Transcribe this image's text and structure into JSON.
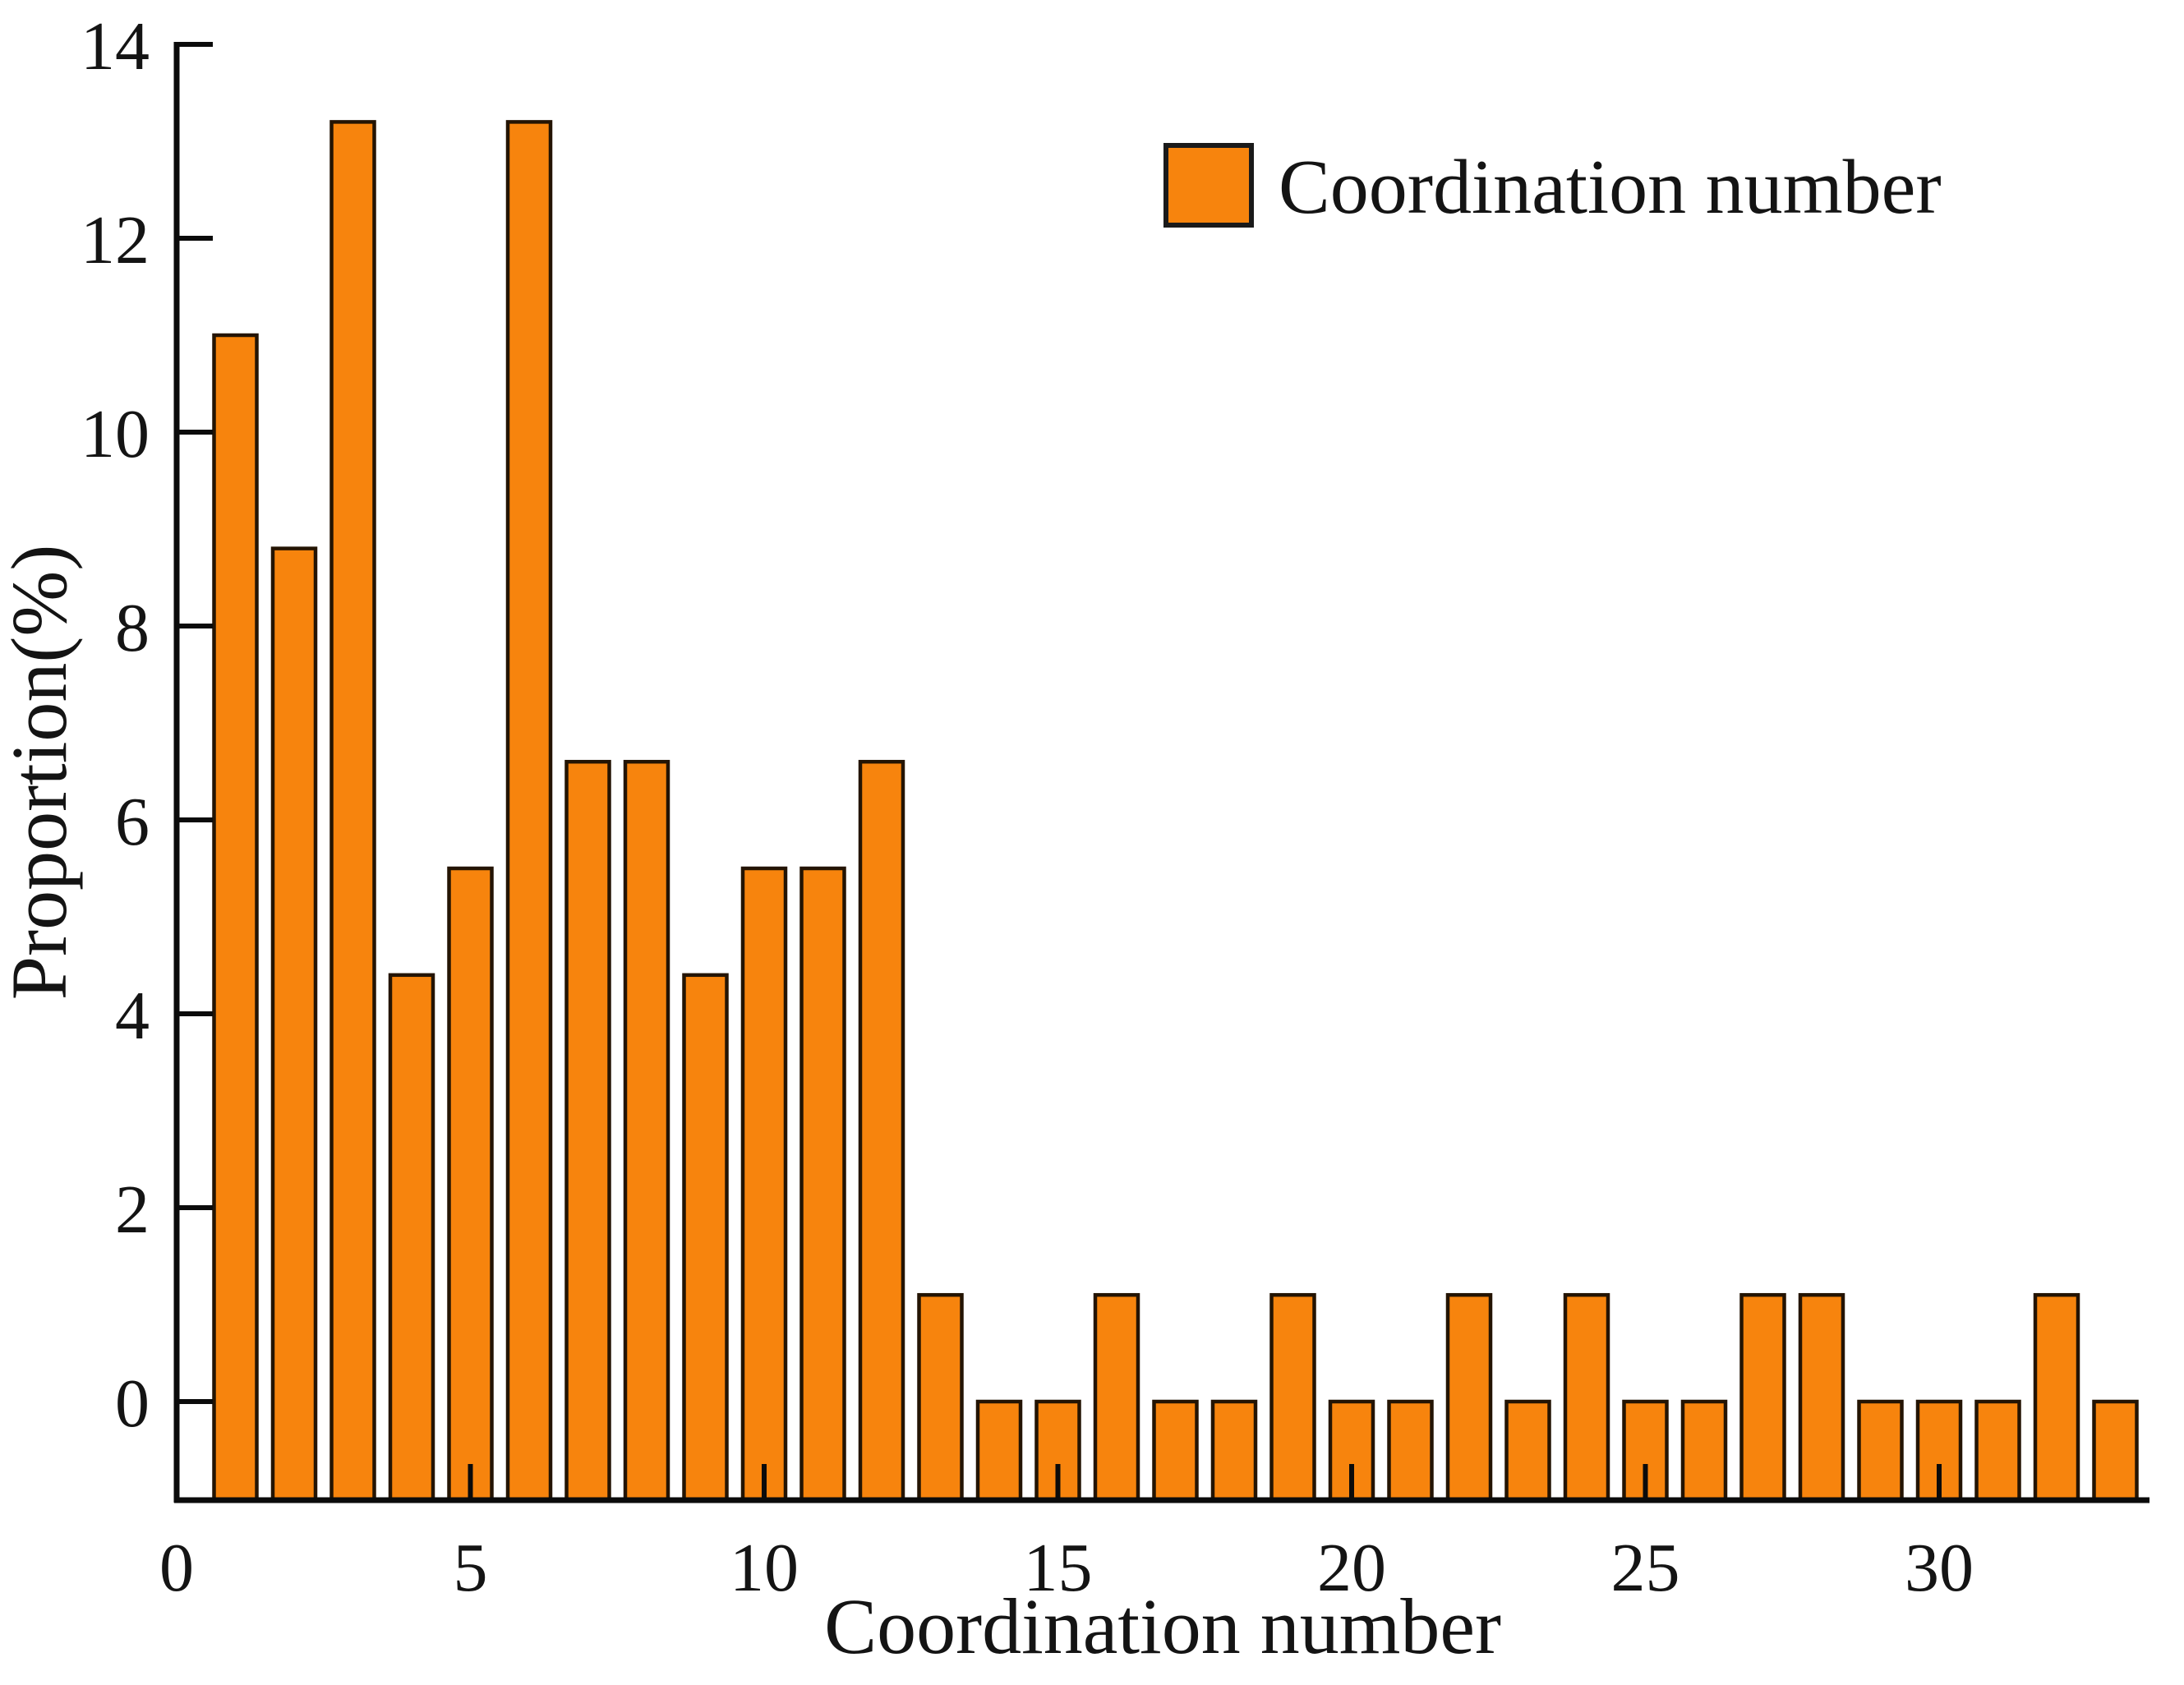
{
  "figure": {
    "x_axis_title": "Coordination number",
    "y_axis_title": "Proportion(%)",
    "legend": {
      "label": "Coordination number",
      "position": "upper right"
    }
  },
  "colors": {
    "bar_fill": "#F7840D",
    "bar_edge": "#241403",
    "axis_line": "#0b0b0b",
    "text": "#141414",
    "background": "#ffffff"
  },
  "chart_data": {
    "type": "bar",
    "title": "",
    "xlabel": "Coordination number",
    "ylabel": "Proportion(%)",
    "x": [
      1,
      2,
      3,
      4,
      5,
      6,
      7,
      8,
      9,
      10,
      11,
      12,
      13,
      14,
      15,
      16,
      17,
      18,
      19,
      20,
      21,
      22,
      23,
      24,
      25,
      26,
      27,
      28,
      29,
      30,
      31,
      32,
      33
    ],
    "values": [
      11.0,
      8.8,
      13.2,
      4.4,
      5.5,
      13.2,
      6.6,
      6.6,
      4.4,
      5.5,
      5.5,
      6.6,
      1.1,
      0,
      0,
      1.1,
      0,
      0,
      1.1,
      0,
      0,
      1.1,
      0,
      1.1,
      0,
      0,
      1.1,
      1.1,
      0,
      0,
      0,
      1.1,
      0
    ],
    "series_name": "Coordination number",
    "xticks": [
      0,
      5,
      10,
      15,
      20,
      25,
      30
    ],
    "yticks": [
      0,
      2,
      4,
      6,
      8,
      10,
      12,
      14
    ],
    "xlim": [
      0,
      33.6
    ],
    "ylim": [
      -1,
      14
    ],
    "bar_width": 0.73,
    "grid": false,
    "legend_position": "upper right",
    "ticks_direction": "in",
    "spines": [
      "left",
      "bottom"
    ]
  }
}
